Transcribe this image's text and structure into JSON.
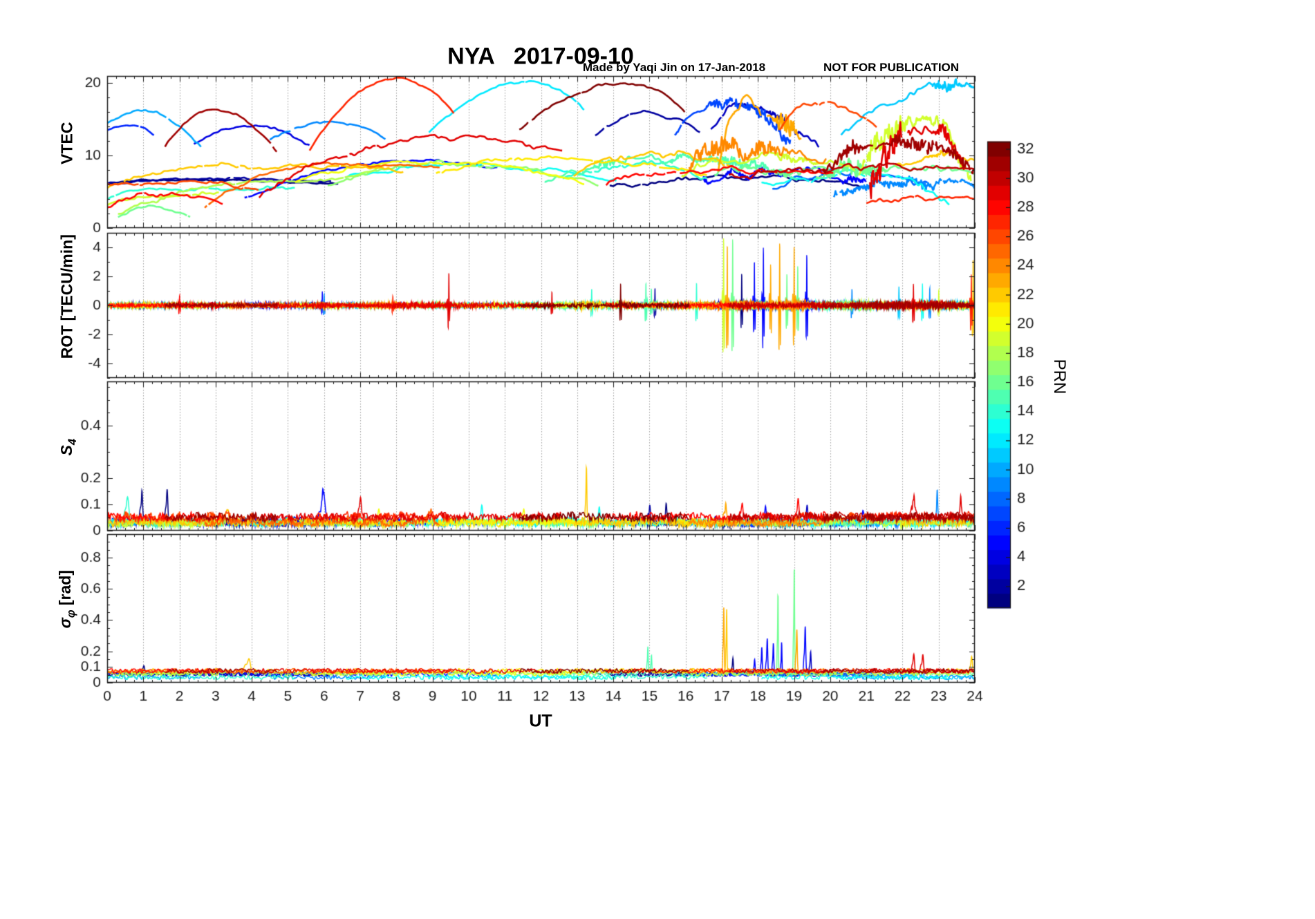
{
  "figure": {
    "title": "NYA   2017-09-10",
    "title_color": "#ff0000",
    "credit": "Made by Yaqi Jin on 17-Jan-2018",
    "notice": "NOT FOR PUBLICATION",
    "annotation_color": "#0000ff",
    "xlabel": "UT",
    "ylabels": [
      {
        "main": "VTEC",
        "sub": "",
        "suffix": ""
      },
      {
        "main": "ROT [TECU/min]",
        "sub": "",
        "suffix": ""
      },
      {
        "main": "S",
        "sub": "4",
        "suffix": ""
      },
      {
        "main": "σ",
        "sub": "φ",
        "suffix": " [rad]"
      }
    ],
    "colorbar": {
      "label": "PRN",
      "min": 1,
      "max": 32,
      "ticks": [
        2,
        4,
        6,
        8,
        10,
        12,
        14,
        16,
        18,
        20,
        22,
        24,
        26,
        28,
        30,
        32
      ],
      "colormap": "jet"
    }
  },
  "chart_data": {
    "type": "line",
    "station": "NYA",
    "date": "2017-09-10",
    "x": {
      "label": "UT",
      "lim": [
        0,
        24
      ],
      "ticks": [
        0,
        1,
        2,
        3,
        4,
        5,
        6,
        7,
        8,
        9,
        10,
        11,
        12,
        13,
        14,
        15,
        16,
        17,
        18,
        19,
        20,
        21,
        22,
        23,
        24
      ]
    },
    "panels": [
      {
        "id": "vtec",
        "ylabel": "VTEC",
        "ylim": [
          0,
          21
        ],
        "yticks": [
          0,
          10,
          20
        ],
        "yticklabels": [
          "0",
          "10",
          "20"
        ]
      },
      {
        "id": "rot",
        "ylabel": "ROT [TECU/min]",
        "ylim": [
          -5,
          5
        ],
        "yticks": [
          -4,
          -2,
          0,
          2,
          4
        ],
        "yticklabels": [
          "-4",
          "-2",
          "0",
          "2",
          "4"
        ]
      },
      {
        "id": "s4",
        "ylabel": "S_4",
        "ylim": [
          0,
          0.57
        ],
        "yticks": [
          0,
          0.1,
          0.2,
          0.4
        ],
        "yticklabels": [
          "0",
          "0.1",
          "0.2",
          "0.4"
        ]
      },
      {
        "id": "sigma_phi",
        "ylabel": "sigma_phi [rad]",
        "ylim": [
          0,
          0.95
        ],
        "yticks": [
          0,
          0.1,
          0.2,
          0.4,
          0.6,
          0.8
        ],
        "yticklabels": [
          "0",
          "0.1",
          "0.2",
          "0.4",
          "0.6",
          "0.8"
        ]
      }
    ],
    "arc_columns": [
      "prn",
      "t_start",
      "t_peak",
      "t_end",
      "v_start",
      "v_peak",
      "v_end",
      "wiggle"
    ],
    "vtec_arcs": [
      [
        10,
        0,
        0.9,
        2.6,
        14.3,
        16.2,
        10.9,
        0.3
      ],
      [
        6,
        0,
        0.6,
        1.3,
        13.4,
        14.1,
        12.9,
        0.2
      ],
      [
        31,
        1.6,
        3.0,
        4.7,
        11.4,
        16.3,
        10.4,
        0.25
      ],
      [
        4,
        2.4,
        4.0,
        5.6,
        11.7,
        14.0,
        11.2,
        0.3
      ],
      [
        9,
        4.5,
        6.1,
        7.7,
        11.9,
        14.7,
        12.5,
        0.3
      ],
      [
        27,
        5.6,
        8.0,
        9.6,
        10.7,
        20.6,
        15.9,
        0.2
      ],
      [
        12,
        8.9,
        11.7,
        13.2,
        13.1,
        20.2,
        16.3,
        0.25
      ],
      [
        32,
        11.4,
        14.4,
        16.1,
        13.4,
        20.0,
        15.7,
        0.3
      ],
      [
        2,
        13.5,
        14.9,
        16.4,
        12.7,
        15.9,
        13.4,
        0.35
      ],
      [
        7,
        15.7,
        17.0,
        18.9,
        12.8,
        17.3,
        11.9,
        0.8
      ],
      [
        3,
        16.7,
        17.6,
        19.7,
        13.9,
        16.4,
        10.9,
        0.9
      ],
      [
        23,
        16.9,
        17.4,
        19.2,
        8.8,
        16.8,
        12.6,
        1.4
      ],
      [
        26,
        18.6,
        19.6,
        21.3,
        13.6,
        17.5,
        13.8,
        0.5
      ],
      [
        11,
        20.3,
        23.6,
        24,
        12.9,
        19.6,
        19.2,
        0.8
      ],
      [
        29,
        21.1,
        22.45,
        23.7,
        5.9,
        14.0,
        7.4,
        1.8
      ],
      [
        19,
        20.8,
        22.5,
        23.9,
        7.2,
        15.3,
        7.8,
        1.8
      ],
      [
        31,
        19.8,
        22.2,
        24,
        8.1,
        12.4,
        8.4,
        0.9
      ],
      [
        22,
        0,
        3.4,
        8.2,
        5.9,
        8.6,
        8.0,
        0.4
      ],
      [
        18,
        0.3,
        4.6,
        7.6,
        2.1,
        6.3,
        8.5,
        0.4
      ],
      [
        14,
        0,
        1.1,
        5.2,
        3.7,
        5.3,
        5.6,
        0.3
      ],
      [
        1,
        0,
        2.6,
        6.4,
        6.2,
        6.7,
        6.1,
        0.2
      ],
      [
        28,
        0,
        1.1,
        3.2,
        3.1,
        4.9,
        3.3,
        0.5
      ],
      [
        16,
        0.3,
        1.3,
        2.3,
        1.6,
        2.9,
        1.2,
        0.3
      ],
      [
        25,
        2.7,
        6.2,
        9.2,
        3.0,
        8.9,
        8.3,
        0.35
      ],
      [
        5,
        3.8,
        8.3,
        10.8,
        4.1,
        9.2,
        8.2,
        0.3
      ],
      [
        29,
        4.2,
        9.4,
        12.6,
        4.6,
        12.4,
        10.4,
        0.5
      ],
      [
        20,
        5.2,
        8.9,
        13.2,
        6.4,
        9.1,
        6.3,
        0.35
      ],
      [
        17,
        6.1,
        9.2,
        13.6,
        5.6,
        8.9,
        6.1,
        0.4
      ],
      [
        13,
        6.6,
        10.1,
        14.1,
        6.9,
        8.7,
        6.2,
        0.35
      ],
      [
        21,
        9.1,
        12.1,
        16.6,
        7.7,
        9.6,
        7.3,
        0.4
      ],
      [
        15,
        12.1,
        15.4,
        19.1,
        6.6,
        9.6,
        6.8,
        0.8
      ],
      [
        1,
        13.9,
        17.6,
        21.2,
        5.6,
        7.1,
        5.7,
        0.4
      ],
      [
        22,
        12.9,
        15.1,
        17.3,
        7.1,
        10.5,
        8.4,
        0.7
      ],
      [
        24,
        16.1,
        17.2,
        19.9,
        8.1,
        10.9,
        8.8,
        1.2
      ],
      [
        28,
        13.8,
        16.9,
        20.1,
        6.1,
        8.1,
        7.3,
        0.5
      ],
      [
        30,
        17.2,
        20.6,
        24,
        6.9,
        8.3,
        8.6,
        0.6
      ],
      [
        13,
        18.1,
        21.1,
        23.3,
        6.1,
        7.4,
        3.4,
        0.7
      ],
      [
        16,
        19.6,
        22.1,
        24,
        7.1,
        8.2,
        7.5,
        1.0
      ],
      [
        8,
        18.4,
        20.6,
        22.7,
        5.7,
        7.9,
        5.8,
        0.7
      ],
      [
        9,
        20.1,
        22.1,
        24,
        4.9,
        6.4,
        5.4,
        0.8
      ],
      [
        27,
        21.0,
        23.4,
        24,
        3.3,
        4.2,
        4.1,
        0.5
      ],
      [
        26,
        0,
        2.1,
        4.2,
        5.8,
        6.4,
        5.1,
        0.3
      ],
      [
        19,
        0,
        1.3,
        3.1,
        3.5,
        4.5,
        4.7,
        0.4
      ],
      [
        19,
        15.9,
        18.1,
        20.7,
        7.6,
        9.7,
        7.7,
        0.8
      ],
      [
        16,
        16.8,
        18.6,
        20.3,
        6.8,
        8.4,
        7.2,
        0.9
      ],
      [
        5,
        16.5,
        18.8,
        21.0,
        6.3,
        7.8,
        6.1,
        0.8
      ],
      [
        14,
        12.6,
        14.6,
        16.6,
        6.7,
        8.9,
        7.1,
        0.6
      ],
      [
        22,
        21.8,
        23.2,
        24,
        8.4,
        10.3,
        9.0,
        0.8
      ],
      [
        2,
        0,
        3.0,
        6.2,
        6.3,
        6.8,
        6.4,
        0.25
      ]
    ],
    "spike_columns": [
      "t",
      "prn",
      "amp",
      "width"
    ],
    "rot": {
      "spike_width_default": 0.03,
      "spikes": [
        [
          9.45,
          29,
          2.2
        ],
        [
          5.95,
          5,
          1.0
        ],
        [
          2.0,
          28,
          0.8
        ],
        [
          6.0,
          9,
          0.9
        ],
        [
          7.9,
          27,
          0.7
        ],
        [
          12.3,
          29,
          1.0
        ],
        [
          13.4,
          14,
          1.3
        ],
        [
          14.2,
          32,
          1.5
        ],
        [
          14.9,
          15,
          1.5
        ],
        [
          15.05,
          15,
          1.3
        ],
        [
          15.15,
          2,
          1.2
        ],
        [
          16.3,
          14,
          1.5
        ],
        [
          17.05,
          19,
          4.9
        ],
        [
          17.15,
          23,
          4.4
        ],
        [
          17.3,
          16,
          4.8
        ],
        [
          17.55,
          1,
          2.2
        ],
        [
          17.9,
          5,
          3.0
        ],
        [
          18.15,
          5,
          4.1
        ],
        [
          18.35,
          23,
          2.9
        ],
        [
          18.6,
          23,
          4.5
        ],
        [
          18.8,
          16,
          2.4
        ],
        [
          19.0,
          23,
          4.2
        ],
        [
          19.1,
          16,
          2.7
        ],
        [
          19.35,
          5,
          3.5
        ],
        [
          20.6,
          9,
          1.1
        ],
        [
          21.9,
          11,
          1.4
        ],
        [
          22.3,
          29,
          1.7
        ],
        [
          22.55,
          13,
          1.5
        ],
        [
          22.75,
          9,
          1.3
        ],
        [
          23.0,
          19,
          1.2
        ],
        [
          23.9,
          27,
          2.4
        ],
        [
          23.95,
          22,
          3.3
        ]
      ]
    },
    "s4": {
      "spikes": [
        [
          0.55,
          14,
          0.11,
          0.06
        ],
        [
          0.95,
          1,
          0.13,
          0.04
        ],
        [
          1.65,
          1,
          0.14,
          0.04
        ],
        [
          3.3,
          22,
          0.06,
          0.08
        ],
        [
          5.95,
          5,
          0.14,
          0.09
        ],
        [
          7.0,
          29,
          0.07,
          0.05
        ],
        [
          7.5,
          20,
          0.06,
          0.05
        ],
        [
          8.9,
          25,
          0.05,
          0.1
        ],
        [
          10.35,
          13,
          0.07,
          0.05
        ],
        [
          11.5,
          20,
          0.05,
          0.05
        ],
        [
          13.25,
          22,
          0.23,
          0.025
        ],
        [
          13.6,
          13,
          0.07,
          0.04
        ],
        [
          15.0,
          2,
          0.08,
          0.04
        ],
        [
          15.45,
          1,
          0.07,
          0.04
        ],
        [
          17.1,
          23,
          0.08,
          0.05
        ],
        [
          17.55,
          28,
          0.07,
          0.05
        ],
        [
          18.2,
          5,
          0.08,
          0.04
        ],
        [
          19.1,
          28,
          0.09,
          0.05
        ],
        [
          19.35,
          3,
          0.08,
          0.04
        ],
        [
          20.9,
          5,
          0.06,
          0.04
        ],
        [
          22.3,
          29,
          0.08,
          0.05
        ],
        [
          22.95,
          9,
          0.13,
          0.03
        ],
        [
          23.6,
          29,
          0.09,
          0.04
        ]
      ]
    },
    "sigma_phi": {
      "spikes": [
        [
          1.0,
          1,
          0.06,
          0.05
        ],
        [
          3.9,
          22,
          0.09,
          0.08
        ],
        [
          14.95,
          15,
          0.19,
          0.02
        ],
        [
          15.05,
          15,
          0.12,
          0.02
        ],
        [
          17.05,
          23,
          0.47,
          0.022
        ],
        [
          17.13,
          22,
          0.45,
          0.018
        ],
        [
          17.3,
          1,
          0.12,
          0.03
        ],
        [
          17.9,
          5,
          0.12,
          0.03
        ],
        [
          18.1,
          5,
          0.2,
          0.025
        ],
        [
          18.25,
          5,
          0.27,
          0.03
        ],
        [
          18.42,
          5,
          0.22,
          0.025
        ],
        [
          18.55,
          16,
          0.6,
          0.018
        ],
        [
          18.65,
          5,
          0.24,
          0.02
        ],
        [
          19.0,
          16,
          0.77,
          0.02
        ],
        [
          19.07,
          23,
          0.3,
          0.025
        ],
        [
          19.3,
          5,
          0.33,
          0.03
        ],
        [
          19.45,
          3,
          0.16,
          0.03
        ],
        [
          22.3,
          29,
          0.12,
          0.04
        ],
        [
          22.55,
          29,
          0.13,
          0.04
        ],
        [
          23.9,
          22,
          0.1,
          0.04
        ]
      ]
    }
  }
}
